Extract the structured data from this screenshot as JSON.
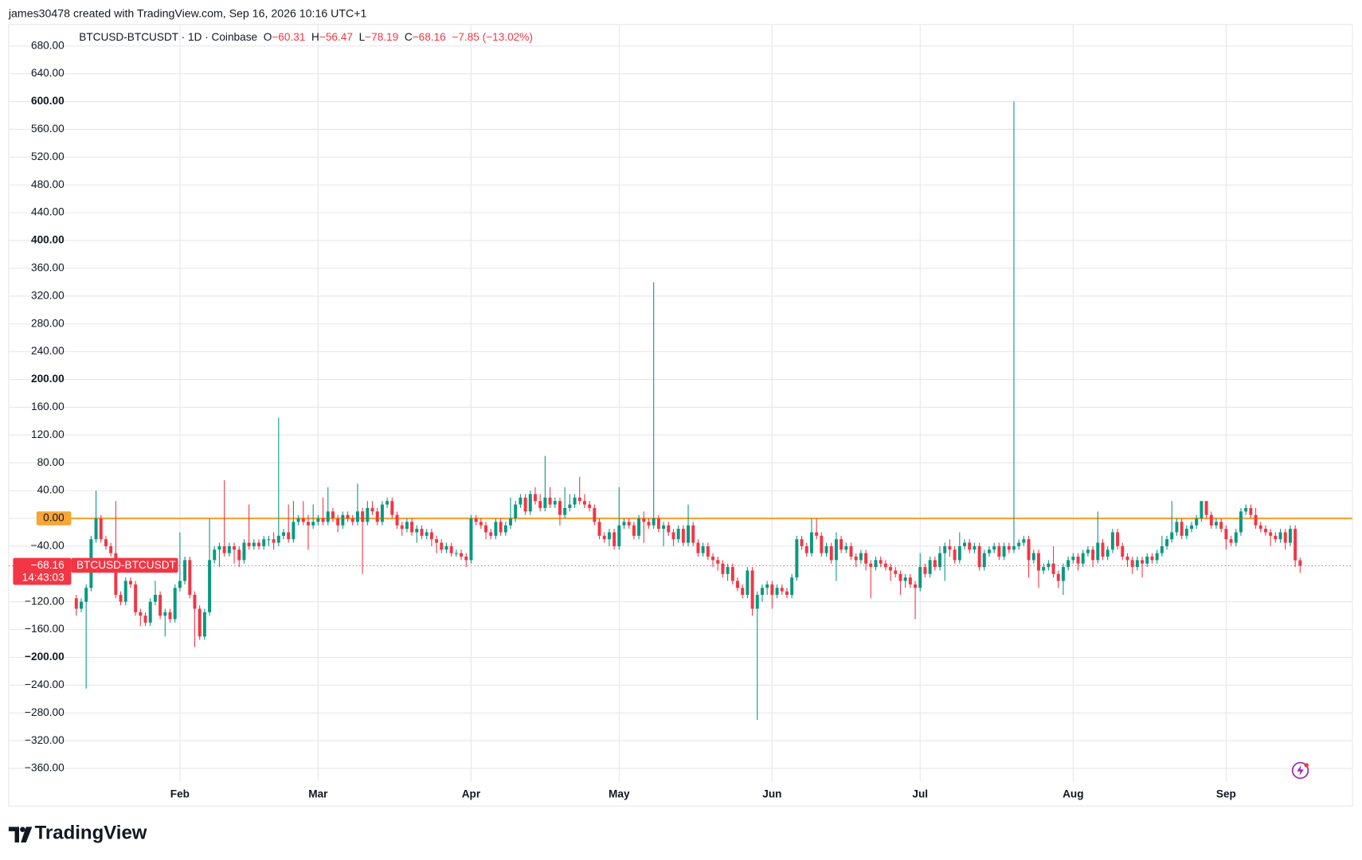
{
  "header": {
    "text": "james30478 created with TradingView.com, Sep 16, 2026 10:16 UTC+1"
  },
  "footer": {
    "brand": "TradingView"
  },
  "chart_data": {
    "type": "candlestick",
    "title": "BTCUSD-BTCUSDT · 1D · Coinbase",
    "ohlc_legend": [
      {
        "key": "O",
        "label": "−60.31"
      },
      {
        "key": "H",
        "label": "−56.47"
      },
      {
        "key": "L",
        "label": "−78.19"
      },
      {
        "key": "C",
        "label": "−68.16"
      }
    ],
    "change_label": "−7.85 (−13.02%)",
    "last_label": "−68.16",
    "countdown": "14:43:03",
    "hline": {
      "value": 0,
      "color": "#f7a534"
    },
    "grid": true,
    "xlim": [
      -13.7,
      258.6
    ],
    "xticks": [
      {
        "value": 21,
        "label": "Feb"
      },
      {
        "value": 49,
        "label": "Mar"
      },
      {
        "value": 80,
        "label": "Apr"
      },
      {
        "value": 110,
        "label": "May"
      },
      {
        "value": 141,
        "label": "Jun"
      },
      {
        "value": 171,
        "label": "Jul"
      },
      {
        "value": 202,
        "label": "Aug"
      },
      {
        "value": 233,
        "label": "Sep"
      }
    ],
    "ylim": [
      -379,
      711
    ],
    "yticks": [
      {
        "value": 680,
        "label": "680.00"
      },
      {
        "value": 640,
        "label": "640.00"
      },
      {
        "value": 600,
        "label": "600.00"
      },
      {
        "value": 560,
        "label": "560.00"
      },
      {
        "value": 520,
        "label": "520.00"
      },
      {
        "value": 480,
        "label": "480.00"
      },
      {
        "value": 440,
        "label": "440.00"
      },
      {
        "value": 400,
        "label": "400.00"
      },
      {
        "value": 360,
        "label": "360.00"
      },
      {
        "value": 320,
        "label": "320.00"
      },
      {
        "value": 280,
        "label": "280.00"
      },
      {
        "value": 240,
        "label": "240.00"
      },
      {
        "value": 200,
        "label": "200.00"
      },
      {
        "value": 160,
        "label": "160.00"
      },
      {
        "value": 120,
        "label": "120.00"
      },
      {
        "value": 80,
        "label": "80.00"
      },
      {
        "value": 40,
        "label": "40.00"
      },
      {
        "value": 0,
        "label": "0.00"
      },
      {
        "value": -40,
        "label": "−40.00"
      },
      {
        "value": -120,
        "label": "−120.00"
      },
      {
        "value": -160,
        "label": "−160.00"
      },
      {
        "value": -200,
        "label": "−200.00"
      },
      {
        "value": -240,
        "label": "−240.00"
      },
      {
        "value": -280,
        "label": "−280.00"
      },
      {
        "value": -320,
        "label": "−320.00"
      },
      {
        "value": -360,
        "label": "−360.00"
      }
    ],
    "series": [
      {
        "name": "BTCUSD-BTCUSDT",
        "up_color": "#089981",
        "down_color": "#f23645",
        "open": [
          -115,
          -130,
          -120,
          -100,
          -30,
          0,
          -30,
          -40,
          -50,
          -110,
          -120,
          -90,
          -95,
          -135,
          -140,
          -150,
          -120,
          -110,
          -140,
          -135,
          -145,
          -100,
          -90,
          -60,
          -110,
          -130,
          -170,
          -135,
          -60,
          -45,
          -40,
          -50,
          -40,
          -45,
          -60,
          -35,
          -40,
          -35,
          -40,
          -30,
          -30,
          -35,
          -25,
          -20,
          -30,
          -5,
          0,
          -5,
          -10,
          -5,
          0,
          -5,
          10,
          0,
          -10,
          5,
          0,
          -5,
          10,
          -5,
          15,
          10,
          -5,
          20,
          25,
          5,
          -10,
          -15,
          -5,
          -20,
          -15,
          -25,
          -20,
          -30,
          -35,
          -45,
          -40,
          -50,
          -50,
          -55,
          -60,
          0,
          -5,
          -10,
          -20,
          -25,
          -5,
          -20,
          -10,
          0,
          20,
          30,
          10,
          35,
          25,
          15,
          30,
          20,
          25,
          5,
          15,
          20,
          30,
          25,
          20,
          15,
          -5,
          -25,
          -30,
          -20,
          -40,
          -10,
          -5,
          -10,
          -25,
          0,
          -5,
          -10,
          0,
          -15,
          -10,
          -20,
          -30,
          -15,
          -35,
          -10,
          -35,
          -50,
          -40,
          -55,
          -60,
          -65,
          -80,
          -70,
          -90,
          -100,
          -110,
          -75,
          -130,
          -110,
          -100,
          -95,
          -110,
          -100,
          -105,
          -110,
          -85,
          -30,
          -40,
          -50,
          -20,
          -25,
          -50,
          -40,
          -60,
          -30,
          -45,
          -40,
          -55,
          -60,
          -50,
          -65,
          -70,
          -60,
          -65,
          -70,
          -75,
          -80,
          -90,
          -85,
          -95,
          -100,
          -70,
          -80,
          -60,
          -70,
          -50,
          -40,
          -45,
          -60,
          -40,
          -35,
          -45,
          -40,
          -70,
          -50,
          -45,
          -40,
          -55,
          -40,
          -45,
          -40,
          -35,
          -30,
          -60,
          -50,
          -75,
          -70,
          -65,
          -80,
          -90,
          -70,
          -60,
          -55,
          -65,
          -50,
          -45,
          -60,
          -35,
          -55,
          -45,
          -20,
          -40,
          -55,
          -60,
          -70,
          -60,
          -65,
          -55,
          -60,
          -50,
          -40,
          -30,
          -20,
          -5,
          -25,
          -15,
          -10,
          0,
          25,
          5,
          -10,
          -5,
          -15,
          -30,
          -35,
          -20,
          10,
          15,
          5,
          -10,
          -15,
          -20,
          -25,
          -30,
          -20,
          -35,
          -15,
          -60.31
        ],
        "high": [
          -110,
          -115,
          -95,
          -25,
          40,
          5,
          -25,
          -35,
          25,
          -105,
          -85,
          -85,
          -90,
          -130,
          -135,
          -115,
          -90,
          -105,
          -130,
          -130,
          -95,
          -20,
          -55,
          -55,
          -105,
          -125,
          -130,
          0,
          -40,
          -35,
          55,
          -35,
          -35,
          -40,
          -30,
          20,
          -30,
          -30,
          -25,
          -25,
          -20,
          145,
          -15,
          20,
          25,
          5,
          25,
          5,
          20,
          5,
          30,
          45,
          15,
          5,
          10,
          10,
          5,
          50,
          15,
          25,
          25,
          15,
          25,
          30,
          30,
          10,
          -5,
          0,
          0,
          -10,
          -10,
          -15,
          -15,
          -25,
          -30,
          -35,
          -35,
          -45,
          -45,
          -50,
          5,
          5,
          0,
          -5,
          -15,
          0,
          0,
          -5,
          30,
          25,
          35,
          35,
          40,
          45,
          35,
          90,
          45,
          30,
          30,
          45,
          35,
          35,
          60,
          35,
          25,
          20,
          0,
          -20,
          -15,
          -15,
          45,
          0,
          0,
          -5,
          5,
          10,
          0,
          340,
          5,
          -5,
          -5,
          -15,
          -10,
          -10,
          20,
          -5,
          -30,
          -35,
          -35,
          -50,
          -55,
          -60,
          -65,
          -65,
          -85,
          -95,
          -70,
          -70,
          -105,
          -95,
          -90,
          -90,
          -95,
          -95,
          -100,
          -80,
          -25,
          -25,
          -35,
          0,
          0,
          -20,
          -35,
          -35,
          -20,
          -25,
          -35,
          -35,
          -50,
          -45,
          -45,
          -60,
          -55,
          -55,
          -60,
          -65,
          -70,
          -75,
          -80,
          -80,
          -90,
          -50,
          -65,
          -55,
          -55,
          -40,
          -35,
          -30,
          -40,
          -20,
          -30,
          -30,
          -35,
          -35,
          -45,
          -40,
          -35,
          -35,
          -35,
          -35,
          600,
          -30,
          -25,
          -25,
          -45,
          -45,
          -65,
          -60,
          -40,
          -75,
          -65,
          -55,
          -50,
          -50,
          -45,
          -40,
          -40,
          10,
          -30,
          -40,
          -15,
          -15,
          -35,
          -50,
          -55,
          -55,
          -55,
          -50,
          -50,
          -45,
          -25,
          -25,
          25,
          0,
          0,
          -10,
          -5,
          5,
          25,
          25,
          10,
          0,
          0,
          -10,
          -25,
          -15,
          15,
          20,
          20,
          15,
          -5,
          -10,
          -15,
          -20,
          -15,
          -15,
          -10,
          -10,
          -56.47
        ],
        "low": [
          -140,
          -135,
          -245,
          -105,
          -35,
          -35,
          -45,
          -55,
          -115,
          -125,
          -125,
          -100,
          -140,
          -155,
          -155,
          -155,
          -125,
          -145,
          -170,
          -150,
          -150,
          -105,
          -95,
          -115,
          -185,
          -175,
          -175,
          -140,
          -65,
          -70,
          -55,
          -55,
          -65,
          -70,
          -65,
          -45,
          -45,
          -45,
          -45,
          -40,
          -45,
          -40,
          -30,
          -35,
          -35,
          -10,
          -10,
          -45,
          -15,
          -10,
          -10,
          -10,
          -5,
          -20,
          -15,
          -5,
          -10,
          -10,
          -80,
          -10,
          5,
          -10,
          -10,
          15,
          0,
          -15,
          -25,
          -20,
          -25,
          -35,
          -30,
          -30,
          -40,
          -50,
          -50,
          -50,
          -55,
          -55,
          -60,
          -70,
          -65,
          -10,
          -15,
          -30,
          -30,
          -30,
          -25,
          -25,
          -15,
          -5,
          15,
          5,
          5,
          20,
          10,
          10,
          15,
          15,
          -10,
          0,
          10,
          15,
          20,
          15,
          10,
          -10,
          -30,
          -35,
          -40,
          -45,
          -45,
          -15,
          -15,
          -30,
          -30,
          -35,
          -15,
          -15,
          -20,
          -40,
          -25,
          -40,
          -35,
          -40,
          -40,
          -40,
          -55,
          -55,
          -60,
          -70,
          -75,
          -85,
          -90,
          -95,
          -105,
          -115,
          -115,
          -140,
          -290,
          -120,
          -110,
          -130,
          -115,
          -110,
          -115,
          -115,
          -90,
          -45,
          -55,
          -55,
          -30,
          -55,
          -55,
          -65,
          -90,
          -50,
          -50,
          -60,
          -70,
          -65,
          -75,
          -115,
          -75,
          -70,
          -75,
          -90,
          -85,
          -110,
          -100,
          -100,
          -145,
          -105,
          -85,
          -85,
          -75,
          -75,
          -90,
          -55,
          -65,
          -65,
          -45,
          -50,
          -50,
          -75,
          -75,
          -55,
          -50,
          -60,
          -60,
          -50,
          -50,
          -45,
          -40,
          -85,
          -65,
          -100,
          -80,
          -75,
          -85,
          -100,
          -110,
          -75,
          -65,
          -75,
          -70,
          -55,
          -70,
          -65,
          -60,
          -60,
          -50,
          -45,
          -60,
          -70,
          -80,
          -75,
          -85,
          -70,
          -65,
          -65,
          -55,
          -45,
          -35,
          -25,
          -30,
          -30,
          -20,
          -15,
          -5,
          0,
          -15,
          -15,
          -20,
          -45,
          -40,
          -40,
          -25,
          5,
          0,
          -15,
          -20,
          -25,
          -40,
          -35,
          -35,
          -45,
          -40,
          -70,
          -78.19
        ],
        "close": [
          -130,
          -120,
          -100,
          -30,
          0,
          -30,
          -40,
          -50,
          -110,
          -120,
          -90,
          -95,
          -135,
          -140,
          -150,
          -120,
          -110,
          -140,
          -135,
          -145,
          -100,
          -90,
          -60,
          -110,
          -130,
          -170,
          -135,
          -60,
          -45,
          -40,
          -50,
          -40,
          -45,
          -60,
          -35,
          -40,
          -35,
          -40,
          -30,
          -30,
          -35,
          -25,
          -20,
          -30,
          -5,
          0,
          -5,
          -10,
          -5,
          0,
          -5,
          10,
          0,
          -10,
          5,
          0,
          -5,
          10,
          -5,
          15,
          10,
          -5,
          20,
          25,
          5,
          -10,
          -15,
          -5,
          -20,
          -15,
          -25,
          -20,
          -30,
          -35,
          -45,
          -40,
          -50,
          -50,
          -55,
          -60,
          0,
          -5,
          -10,
          -20,
          -25,
          -5,
          -20,
          -10,
          0,
          20,
          30,
          10,
          35,
          25,
          15,
          30,
          20,
          25,
          5,
          15,
          20,
          30,
          25,
          20,
          15,
          -5,
          -25,
          -30,
          -20,
          -40,
          -10,
          -5,
          -10,
          -25,
          0,
          -5,
          -10,
          0,
          -15,
          -10,
          -20,
          -30,
          -15,
          -35,
          -10,
          -35,
          -50,
          -40,
          -55,
          -60,
          -65,
          -80,
          -70,
          -90,
          -100,
          -110,
          -75,
          -130,
          -110,
          -100,
          -95,
          -110,
          -100,
          -105,
          -110,
          -85,
          -30,
          -40,
          -50,
          -20,
          -25,
          -50,
          -40,
          -60,
          -30,
          -45,
          -40,
          -55,
          -60,
          -50,
          -65,
          -70,
          -60,
          -65,
          -70,
          -75,
          -80,
          -90,
          -85,
          -95,
          -100,
          -70,
          -80,
          -60,
          -70,
          -50,
          -40,
          -45,
          -60,
          -40,
          -35,
          -45,
          -40,
          -70,
          -50,
          -45,
          -40,
          -55,
          -40,
          -45,
          -40,
          -35,
          -30,
          -60,
          -50,
          -75,
          -70,
          -65,
          -80,
          -90,
          -70,
          -60,
          -55,
          -65,
          -50,
          -45,
          -60,
          -35,
          -55,
          -45,
          -20,
          -40,
          -55,
          -60,
          -70,
          -60,
          -65,
          -55,
          -60,
          -50,
          -40,
          -30,
          -20,
          -5,
          -25,
          -15,
          -10,
          0,
          25,
          5,
          -10,
          -5,
          -15,
          -30,
          -35,
          -20,
          10,
          15,
          5,
          -10,
          -15,
          -20,
          -25,
          -30,
          -20,
          -35,
          -15,
          -60.31,
          -68.16
        ]
      }
    ]
  }
}
